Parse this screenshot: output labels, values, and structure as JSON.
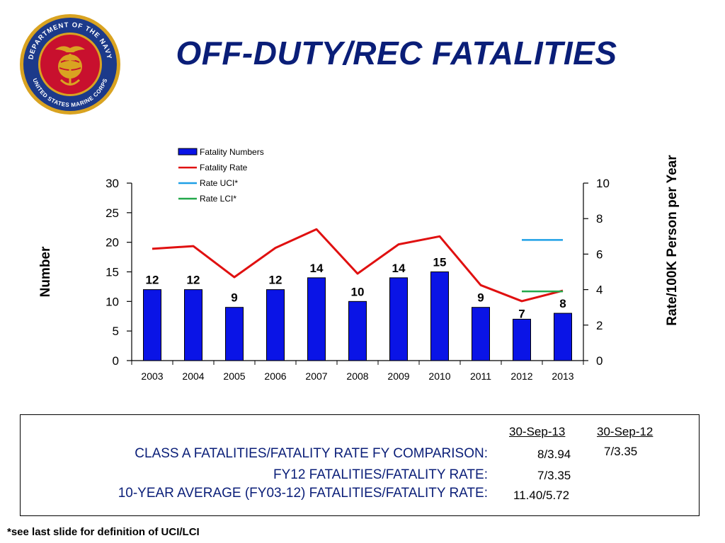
{
  "header": {
    "title": "OFF-DUTY/REC FATALITIES",
    "seal": {
      "icon": "marine-corps-seal-icon",
      "ring_text_top": "DEPARTMENT OF THE NAVY",
      "ring_text_bottom": "UNITED STATES MARINE CORPS",
      "colors": {
        "ring": "#1c3a8a",
        "center": "#c8102e",
        "emblem": "#d9a321"
      }
    }
  },
  "chart_data": {
    "type": "bar",
    "categories": [
      "2003",
      "2004",
      "2005",
      "2006",
      "2007",
      "2008",
      "2009",
      "2010",
      "2011",
      "2012",
      "2013"
    ],
    "series": [
      {
        "name": "Fatality Numbers",
        "type": "bar",
        "axis": "left",
        "color": "#0a14e6",
        "values": [
          12,
          12,
          9,
          12,
          14,
          10,
          14,
          15,
          9,
          7,
          8
        ]
      },
      {
        "name": "Fatality Rate",
        "type": "line",
        "axis": "right",
        "color": "#e01010",
        "values": [
          6.3,
          6.45,
          4.7,
          6.35,
          7.4,
          4.9,
          6.55,
          7.0,
          4.25,
          3.35,
          3.94
        ]
      },
      {
        "name": "Rate UCI*",
        "type": "line",
        "axis": "right",
        "color": "#1fa0e6",
        "x": [
          "2012",
          "2013"
        ],
        "values": [
          6.8,
          6.8
        ]
      },
      {
        "name": "Rate LCI*",
        "type": "line",
        "axis": "right",
        "color": "#22a84a",
        "x": [
          "2012",
          "2013"
        ],
        "values": [
          3.9,
          3.9
        ]
      }
    ],
    "bar_labels": [
      "12",
      "12",
      "9",
      "12",
      "14",
      "10",
      "14",
      "15",
      "9",
      "7",
      "8"
    ],
    "ylabel": "Number",
    "ylabel_right": "Rate/100K Person per Year",
    "ylim": [
      0,
      30
    ],
    "ylim_right": [
      0,
      10
    ],
    "yticks": [
      0,
      5,
      10,
      15,
      20,
      25,
      30
    ],
    "yticks_right": [
      0,
      2,
      4,
      6,
      8,
      10
    ],
    "grid": false,
    "legend": "top-left"
  },
  "summary": {
    "col_headers": [
      "30-Sep-13",
      "30-Sep-12"
    ],
    "rows": [
      {
        "label": "CLASS A FATALITIES/FATALITY RATE FY COMPARISON:",
        "value_fy13": "8/3.94",
        "value_fy12": "7/3.35"
      },
      {
        "label": "FY12 FATALITIES/FATALITY RATE:",
        "value_fy13": "7/3.35"
      },
      {
        "label": "10-YEAR AVERAGE (FY03-12) FATALITIES/FATALITY RATE:",
        "value_fy13": "11.40/5.72"
      }
    ]
  },
  "footnote": "*see last slide for definition of UCI/LCI"
}
